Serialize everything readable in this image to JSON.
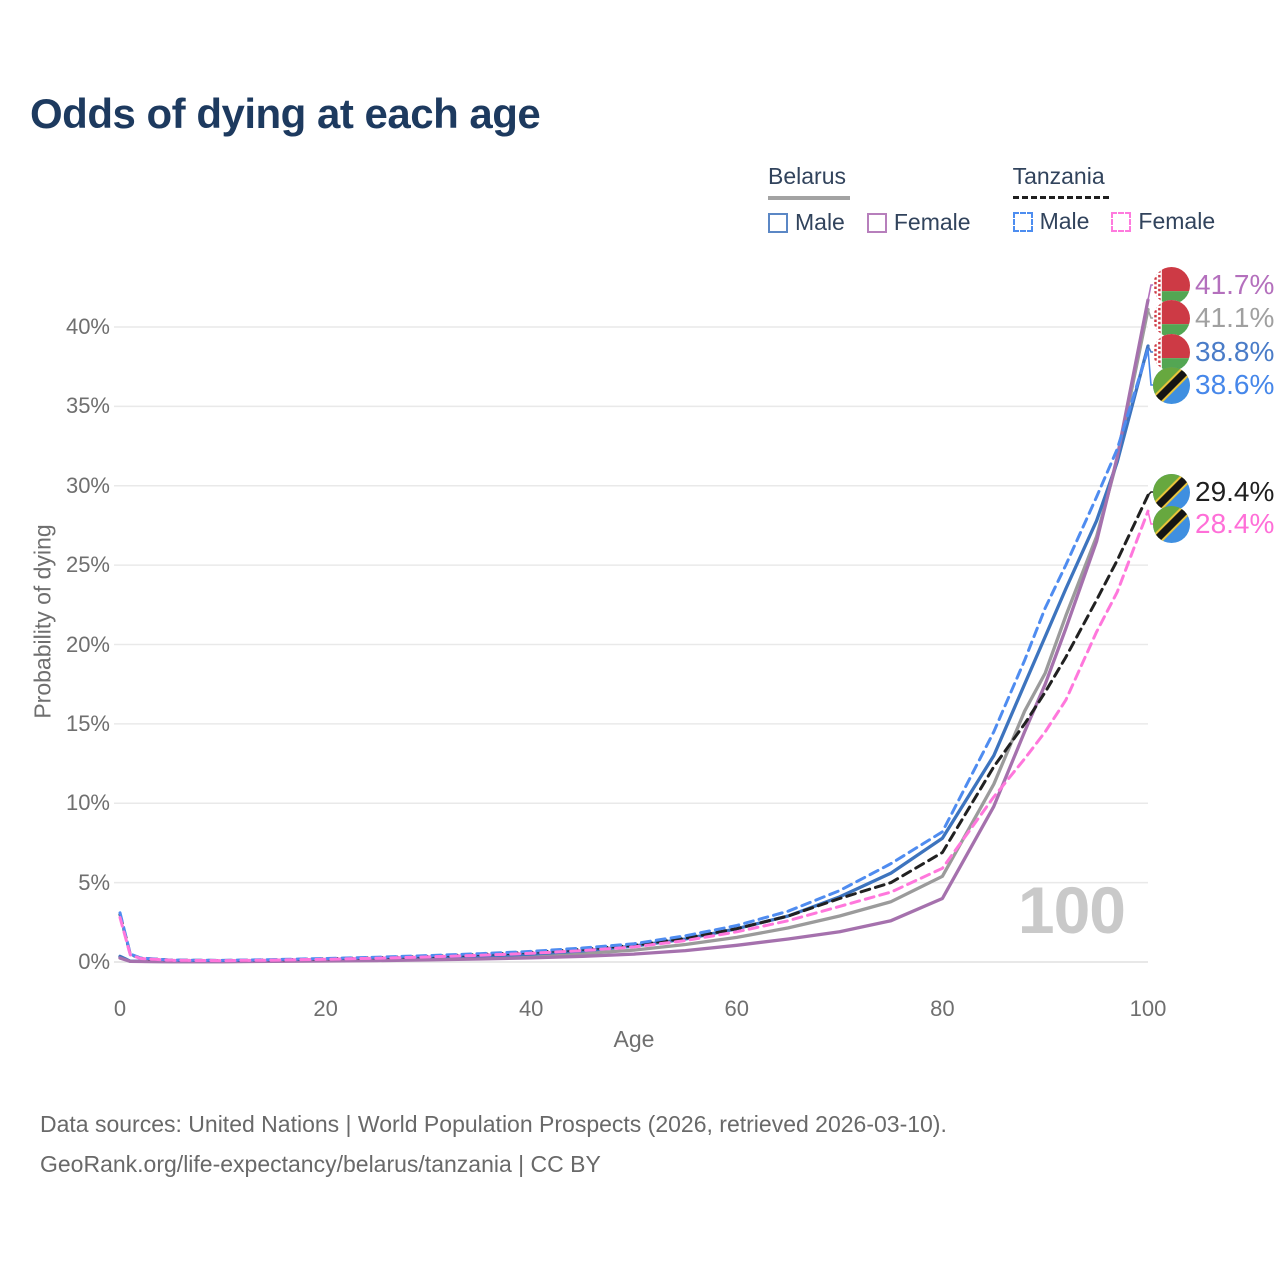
{
  "title": "Odds of dying at each age",
  "legend_groups": [
    {
      "label": "Belarus",
      "style": "solid",
      "underline_color": "#a3a3a3",
      "items": [
        {
          "label": "Male",
          "color": "#5b87c5",
          "dashed": false
        },
        {
          "label": "Female",
          "color": "#b77fbc",
          "dashed": false
        }
      ]
    },
    {
      "label": "Tanzania",
      "style": "dashed",
      "underline_color": "#1f1f1f",
      "items": [
        {
          "label": "Male",
          "color": "#4d8df0",
          "dashed": true
        },
        {
          "label": "Female",
          "color": "#ff7ade",
          "dashed": true
        }
      ]
    }
  ],
  "chart_data": {
    "type": "line",
    "title": "Odds of dying at each age",
    "xlabel": "Age",
    "ylabel": "Probability of dying",
    "xlim": [
      0,
      100
    ],
    "ylim": [
      0,
      43
    ],
    "grid": "horizontal",
    "x_ticks": [
      0,
      20,
      40,
      60,
      80,
      100
    ],
    "y_ticks": [
      "0%",
      "5%",
      "10%",
      "15%",
      "20%",
      "25%",
      "30%",
      "35%",
      "40%"
    ],
    "x": [
      0,
      1,
      2,
      5,
      10,
      15,
      20,
      25,
      30,
      35,
      40,
      45,
      50,
      55,
      60,
      65,
      70,
      75,
      80,
      85,
      88,
      90,
      92,
      95,
      97,
      100
    ],
    "series": [
      {
        "name": "Belarus",
        "country": "Belarus",
        "sex": "both",
        "dashed": false,
        "color": "#9b9b9b",
        "end_label": "41.1%",
        "values": [
          0.3,
          0.045,
          0.035,
          0.025,
          0.025,
          0.06,
          0.1,
          0.15,
          0.2,
          0.28,
          0.38,
          0.53,
          0.75,
          1.1,
          1.55,
          2.15,
          2.9,
          3.8,
          5.4,
          11.2,
          15.8,
          18.2,
          21.8,
          26.8,
          31.6,
          41.1
        ]
      },
      {
        "name": "Belarus Male",
        "country": "Belarus",
        "sex": "male",
        "dashed": false,
        "color": "#3d74be",
        "end_label": "38.8%",
        "values": [
          0.35,
          0.05,
          0.04,
          0.03,
          0.03,
          0.08,
          0.15,
          0.2,
          0.28,
          0.38,
          0.5,
          0.7,
          1.0,
          1.45,
          2.1,
          2.9,
          4.1,
          5.6,
          7.8,
          13.0,
          17.5,
          20.5,
          23.5,
          27.8,
          31.5,
          38.8
        ]
      },
      {
        "name": "Belarus Female",
        "country": "Belarus",
        "sex": "female",
        "dashed": false,
        "color": "#a571ad",
        "end_label": "41.7%",
        "values": [
          0.25,
          0.04,
          0.03,
          0.02,
          0.02,
          0.04,
          0.06,
          0.09,
          0.13,
          0.19,
          0.26,
          0.36,
          0.5,
          0.72,
          1.05,
          1.45,
          1.9,
          2.6,
          4.0,
          9.8,
          14.5,
          17.5,
          21.0,
          26.5,
          31.8,
          41.7
        ]
      },
      {
        "name": "Tanzania",
        "country": "Tanzania",
        "sex": "both",
        "dashed": true,
        "color": "#212121",
        "end_label": "29.4%",
        "values": [
          3.0,
          0.48,
          0.24,
          0.115,
          0.095,
          0.135,
          0.2,
          0.27,
          0.36,
          0.47,
          0.61,
          0.8,
          1.05,
          1.5,
          2.1,
          2.9,
          4.0,
          5.0,
          6.9,
          12.3,
          15.0,
          17.0,
          19.2,
          22.8,
          25.3,
          29.4
        ]
      },
      {
        "name": "Tanzania Male",
        "country": "Tanzania",
        "sex": "male",
        "dashed": true,
        "color": "#4f8cf0",
        "end_label": "38.6%",
        "values": [
          3.1,
          0.5,
          0.25,
          0.12,
          0.1,
          0.15,
          0.22,
          0.3,
          0.4,
          0.52,
          0.67,
          0.88,
          1.15,
          1.65,
          2.3,
          3.2,
          4.5,
          6.2,
          8.2,
          14.5,
          19.0,
          22.3,
          25.0,
          29.3,
          32.3,
          38.6
        ]
      },
      {
        "name": "Tanzania Female",
        "country": "Tanzania",
        "sex": "female",
        "dashed": true,
        "color": "#ff77dc",
        "end_label": "28.4%",
        "values": [
          2.8,
          0.45,
          0.22,
          0.11,
          0.09,
          0.12,
          0.17,
          0.24,
          0.32,
          0.42,
          0.55,
          0.72,
          0.95,
          1.35,
          1.9,
          2.6,
          3.5,
          4.4,
          5.9,
          10.4,
          12.8,
          14.5,
          16.5,
          20.8,
          23.3,
          28.4
        ]
      }
    ]
  },
  "end_labels": [
    {
      "text": "41.7%",
      "color": "#b470bd",
      "flag": "belarus",
      "series": "Belarus Female"
    },
    {
      "text": "41.1%",
      "color": "#a0a0a0",
      "flag": "belarus",
      "series": "Belarus"
    },
    {
      "text": "38.8%",
      "color": "#4a7cc8",
      "flag": "belarus",
      "series": "Belarus Male"
    },
    {
      "text": "38.6%",
      "color": "#4687ea",
      "flag": "tanzania",
      "series": "Tanzania Male"
    },
    {
      "text": "29.4%",
      "color": "#1f1f1f",
      "flag": "tanzania",
      "series": "Tanzania"
    },
    {
      "text": "28.4%",
      "color": "#ff6fd8",
      "flag": "tanzania",
      "series": "Tanzania Female"
    }
  ],
  "flags": {
    "belarus": {
      "red": "#cd3a45",
      "green": "#53a653",
      "white": "#ffffff"
    },
    "tanzania": {
      "green": "#67a83f",
      "blue": "#3f8fe0",
      "yellow": "#e8c43a",
      "black": "#141414"
    }
  },
  "watermark": "100",
  "footer": {
    "line1": "Data sources: United Nations | World Population Prospects (2026, retrieved 2026-03-10).",
    "line2": "GeoRank.org/life-expectancy/belarus/tanzania | CC BY"
  }
}
